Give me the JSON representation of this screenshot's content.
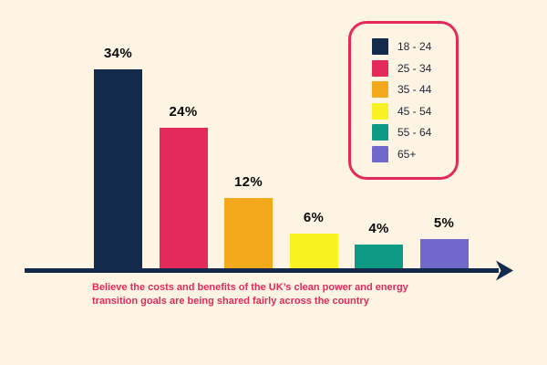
{
  "page": {
    "background_color": "#FDF4E4"
  },
  "chart_data": {
    "type": "bar",
    "categories": [
      "18 - 24",
      "25 - 34",
      "35 - 44",
      "45 - 54",
      "55 - 64",
      "65+"
    ],
    "values": [
      34,
      24,
      12,
      6,
      4,
      5
    ],
    "value_labels": [
      "34%",
      "24%",
      "12%",
      "6%",
      "4%",
      "5%"
    ],
    "bar_colors": [
      "#132A4C",
      "#E32A5B",
      "#F4A91C",
      "#F8F222",
      "#0E9B85",
      "#7168CB"
    ],
    "title": "",
    "xlabel": "",
    "ylabel": "",
    "ylim": [
      0,
      40
    ],
    "grid": false,
    "axis_color": "#132A4C",
    "value_label_color": "#0B0B0B",
    "legend": {
      "position": "top-right",
      "border_color": "#E32A5B",
      "entries": [
        "18 - 24",
        "25 - 34",
        "35 - 44",
        "45 - 54",
        "55 - 64",
        "65+"
      ]
    },
    "caption": "Believe the costs and benefits of the UK’s clean power and energy transition goals are being shared fairly across the country",
    "caption_color": "#E32A5B"
  }
}
